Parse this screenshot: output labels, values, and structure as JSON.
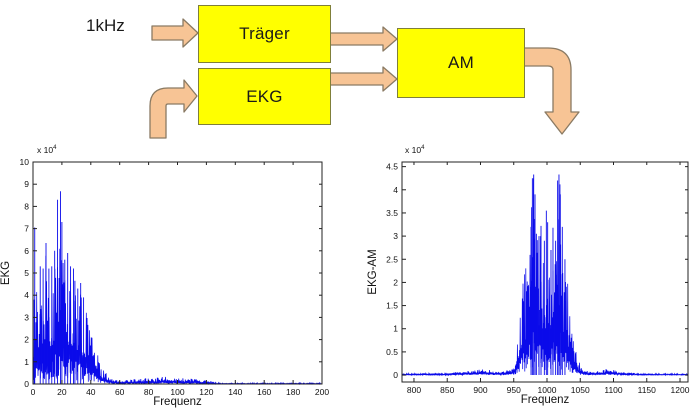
{
  "diagram": {
    "input_label": "1kHz",
    "blocks": [
      {
        "label": "Träger"
      },
      {
        "label": "EKG"
      },
      {
        "label": "AM"
      }
    ],
    "arrow_fill": "#F7C495",
    "arrow_stroke": "#8A7A63",
    "box_fill": "#FFFF00",
    "box_border": "#7F7F3A"
  },
  "chart_data": [
    {
      "type": "line",
      "title": "",
      "xlabel": "Frequenz",
      "ylabel": "EKG",
      "scale_label": "x 10",
      "scale_exp": "4",
      "line_color": "#0B0BEA",
      "axis_color": "#222222",
      "xlim": [
        0,
        200
      ],
      "ylim": [
        0,
        10
      ],
      "xticks": [
        0,
        20,
        40,
        60,
        80,
        100,
        120,
        140,
        160,
        180,
        200
      ],
      "yticks": [
        0,
        1,
        2,
        3,
        4,
        5,
        6,
        7,
        8,
        9,
        10
      ],
      "grid": false,
      "legend": null,
      "unit_scale": "1e4",
      "envelope": [
        [
          0,
          0.5
        ],
        [
          1,
          7.0
        ],
        [
          3,
          4.0
        ],
        [
          5,
          4.6
        ],
        [
          7,
          5.2
        ],
        [
          9,
          6.3
        ],
        [
          11,
          4.8
        ],
        [
          13,
          4.6
        ],
        [
          15,
          5.6
        ],
        [
          17,
          6.5
        ],
        [
          19,
          6.2
        ],
        [
          21,
          5.8
        ],
        [
          23,
          4.9
        ],
        [
          25,
          5.2
        ],
        [
          27,
          4.6
        ],
        [
          29,
          4.7
        ],
        [
          31,
          4.2
        ],
        [
          33,
          4.5
        ],
        [
          35,
          3.8
        ],
        [
          37,
          3.2
        ],
        [
          39,
          3.0
        ],
        [
          41,
          2.4
        ],
        [
          43,
          1.8
        ],
        [
          45,
          1.3
        ],
        [
          47,
          0.9
        ],
        [
          50,
          0.55
        ],
        [
          53,
          0.35
        ],
        [
          56,
          0.22
        ],
        [
          60,
          0.15
        ],
        [
          65,
          0.18
        ],
        [
          70,
          0.22
        ],
        [
          75,
          0.25
        ],
        [
          80,
          0.28
        ],
        [
          85,
          0.3
        ],
        [
          90,
          0.34
        ],
        [
          95,
          0.3
        ],
        [
          100,
          0.28
        ],
        [
          105,
          0.26
        ],
        [
          110,
          0.24
        ],
        [
          113,
          0.28
        ],
        [
          116,
          0.12
        ],
        [
          120,
          0.18
        ],
        [
          124,
          0.12
        ],
        [
          126,
          0.06
        ],
        [
          140,
          0.05
        ],
        [
          160,
          0.05
        ],
        [
          180,
          0.05
        ],
        [
          200,
          0.05
        ]
      ],
      "peaks": [
        [
          0.8,
          3.8
        ],
        [
          1.2,
          7.05
        ],
        [
          5,
          5.3
        ],
        [
          7,
          5.2
        ],
        [
          9,
          6.35
        ],
        [
          11,
          5.2
        ],
        [
          13,
          5.3
        ],
        [
          15,
          6.0
        ],
        [
          17,
          8.3
        ],
        [
          19,
          8.68
        ],
        [
          20,
          7.3
        ],
        [
          22,
          5.6
        ],
        [
          24,
          5.9
        ],
        [
          26,
          5.3
        ],
        [
          28,
          5.2
        ],
        [
          29,
          4.65
        ],
        [
          31,
          4.3
        ],
        [
          33,
          4.55
        ],
        [
          35,
          3.9
        ]
      ],
      "samples": 700,
      "seed": 13
    },
    {
      "type": "line",
      "title": "",
      "xlabel": "Frequenz",
      "ylabel": "EKG-AM",
      "scale_label": "x 10",
      "scale_exp": "4",
      "line_color": "#0B0BEA",
      "axis_color": "#222222",
      "xlim": [
        782,
        1212
      ],
      "ylim": [
        -0.15,
        4.6
      ],
      "xticks": [
        800,
        850,
        900,
        950,
        1000,
        1050,
        1100,
        1150,
        1200
      ],
      "yticks": [
        0,
        0.5,
        1,
        1.5,
        2,
        2.5,
        3,
        3.5,
        4,
        4.5
      ],
      "grid": false,
      "legend": null,
      "unit_scale": "1e4",
      "envelope": [
        [
          782,
          0.04
        ],
        [
          850,
          0.04
        ],
        [
          860,
          0.07
        ],
        [
          870,
          0.06
        ],
        [
          880,
          0.08
        ],
        [
          890,
          0.1
        ],
        [
          900,
          0.13
        ],
        [
          908,
          0.15
        ],
        [
          915,
          0.1
        ],
        [
          925,
          0.07
        ],
        [
          935,
          0.08
        ],
        [
          945,
          0.14
        ],
        [
          950,
          0.25
        ],
        [
          953,
          0.5
        ],
        [
          956,
          0.9
        ],
        [
          960,
          1.4
        ],
        [
          963,
          1.9
        ],
        [
          966,
          2.2
        ],
        [
          969,
          2.4
        ],
        [
          972,
          2.7
        ],
        [
          975,
          3.2
        ],
        [
          978,
          4.1
        ],
        [
          980,
          4.3
        ],
        [
          982,
          3.4
        ],
        [
          985,
          2.9
        ],
        [
          988,
          3.0
        ],
        [
          991,
          3.2
        ],
        [
          994,
          2.6
        ],
        [
          997,
          2.9
        ],
        [
          1000,
          3.5
        ],
        [
          1003,
          2.8
        ],
        [
          1006,
          2.6
        ],
        [
          1009,
          3.2
        ],
        [
          1012,
          2.8
        ],
        [
          1015,
          3.1
        ],
        [
          1018,
          4.3
        ],
        [
          1020,
          4.1
        ],
        [
          1023,
          3.2
        ],
        [
          1026,
          2.5
        ],
        [
          1029,
          2.2
        ],
        [
          1032,
          1.9
        ],
        [
          1035,
          1.5
        ],
        [
          1038,
          1.1
        ],
        [
          1042,
          0.7
        ],
        [
          1046,
          0.4
        ],
        [
          1050,
          0.22
        ],
        [
          1056,
          0.12
        ],
        [
          1062,
          0.08
        ],
        [
          1070,
          0.07
        ],
        [
          1080,
          0.1
        ],
        [
          1088,
          0.13
        ],
        [
          1095,
          0.14
        ],
        [
          1102,
          0.1
        ],
        [
          1110,
          0.07
        ],
        [
          1120,
          0.05
        ],
        [
          1130,
          0.05
        ],
        [
          1138,
          0.03
        ],
        [
          1160,
          0.03
        ],
        [
          1212,
          0.03
        ]
      ],
      "peaks": [
        [
          976,
          3.2
        ],
        [
          978,
          4.25
        ],
        [
          980,
          4.33
        ],
        [
          982,
          3.9
        ],
        [
          984,
          3.05
        ],
        [
          988,
          3.0
        ],
        [
          991,
          3.22
        ],
        [
          996,
          2.9
        ],
        [
          999,
          3.55
        ],
        [
          1001,
          3.3
        ],
        [
          1006,
          2.7
        ],
        [
          1009,
          3.18
        ],
        [
          1013,
          2.9
        ],
        [
          1016,
          4.2
        ],
        [
          1018,
          4.33
        ],
        [
          1020,
          3.9
        ],
        [
          1023,
          3.2
        ],
        [
          1027,
          2.5
        ]
      ],
      "samples": 820,
      "seed": 29
    }
  ]
}
